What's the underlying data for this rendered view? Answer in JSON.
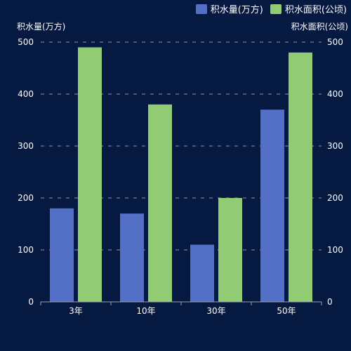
{
  "chart_data": {
    "type": "bar",
    "categories": [
      "3年",
      "10年",
      "30年",
      "50年"
    ],
    "series": [
      {
        "name": "积水量(万方)",
        "color": "#5470c6",
        "values": [
          180,
          170,
          110,
          370
        ],
        "axis": "left"
      },
      {
        "name": "积水面积(公顷)",
        "color": "#91cc75",
        "values": [
          490,
          380,
          200,
          480
        ],
        "axis": "right"
      }
    ],
    "y_left": {
      "label": "积水量(万方)",
      "ylim": [
        0,
        500
      ],
      "ticks": [
        "0",
        "100",
        "200",
        "300",
        "400",
        "500"
      ]
    },
    "y_right": {
      "label": "积水面积(公顷)",
      "ylim": [
        0,
        500
      ],
      "ticks": [
        "0",
        "100",
        "200",
        "300",
        "400",
        "500"
      ]
    },
    "grid": true,
    "legend_placement": "top-right",
    "background": "#061941"
  }
}
